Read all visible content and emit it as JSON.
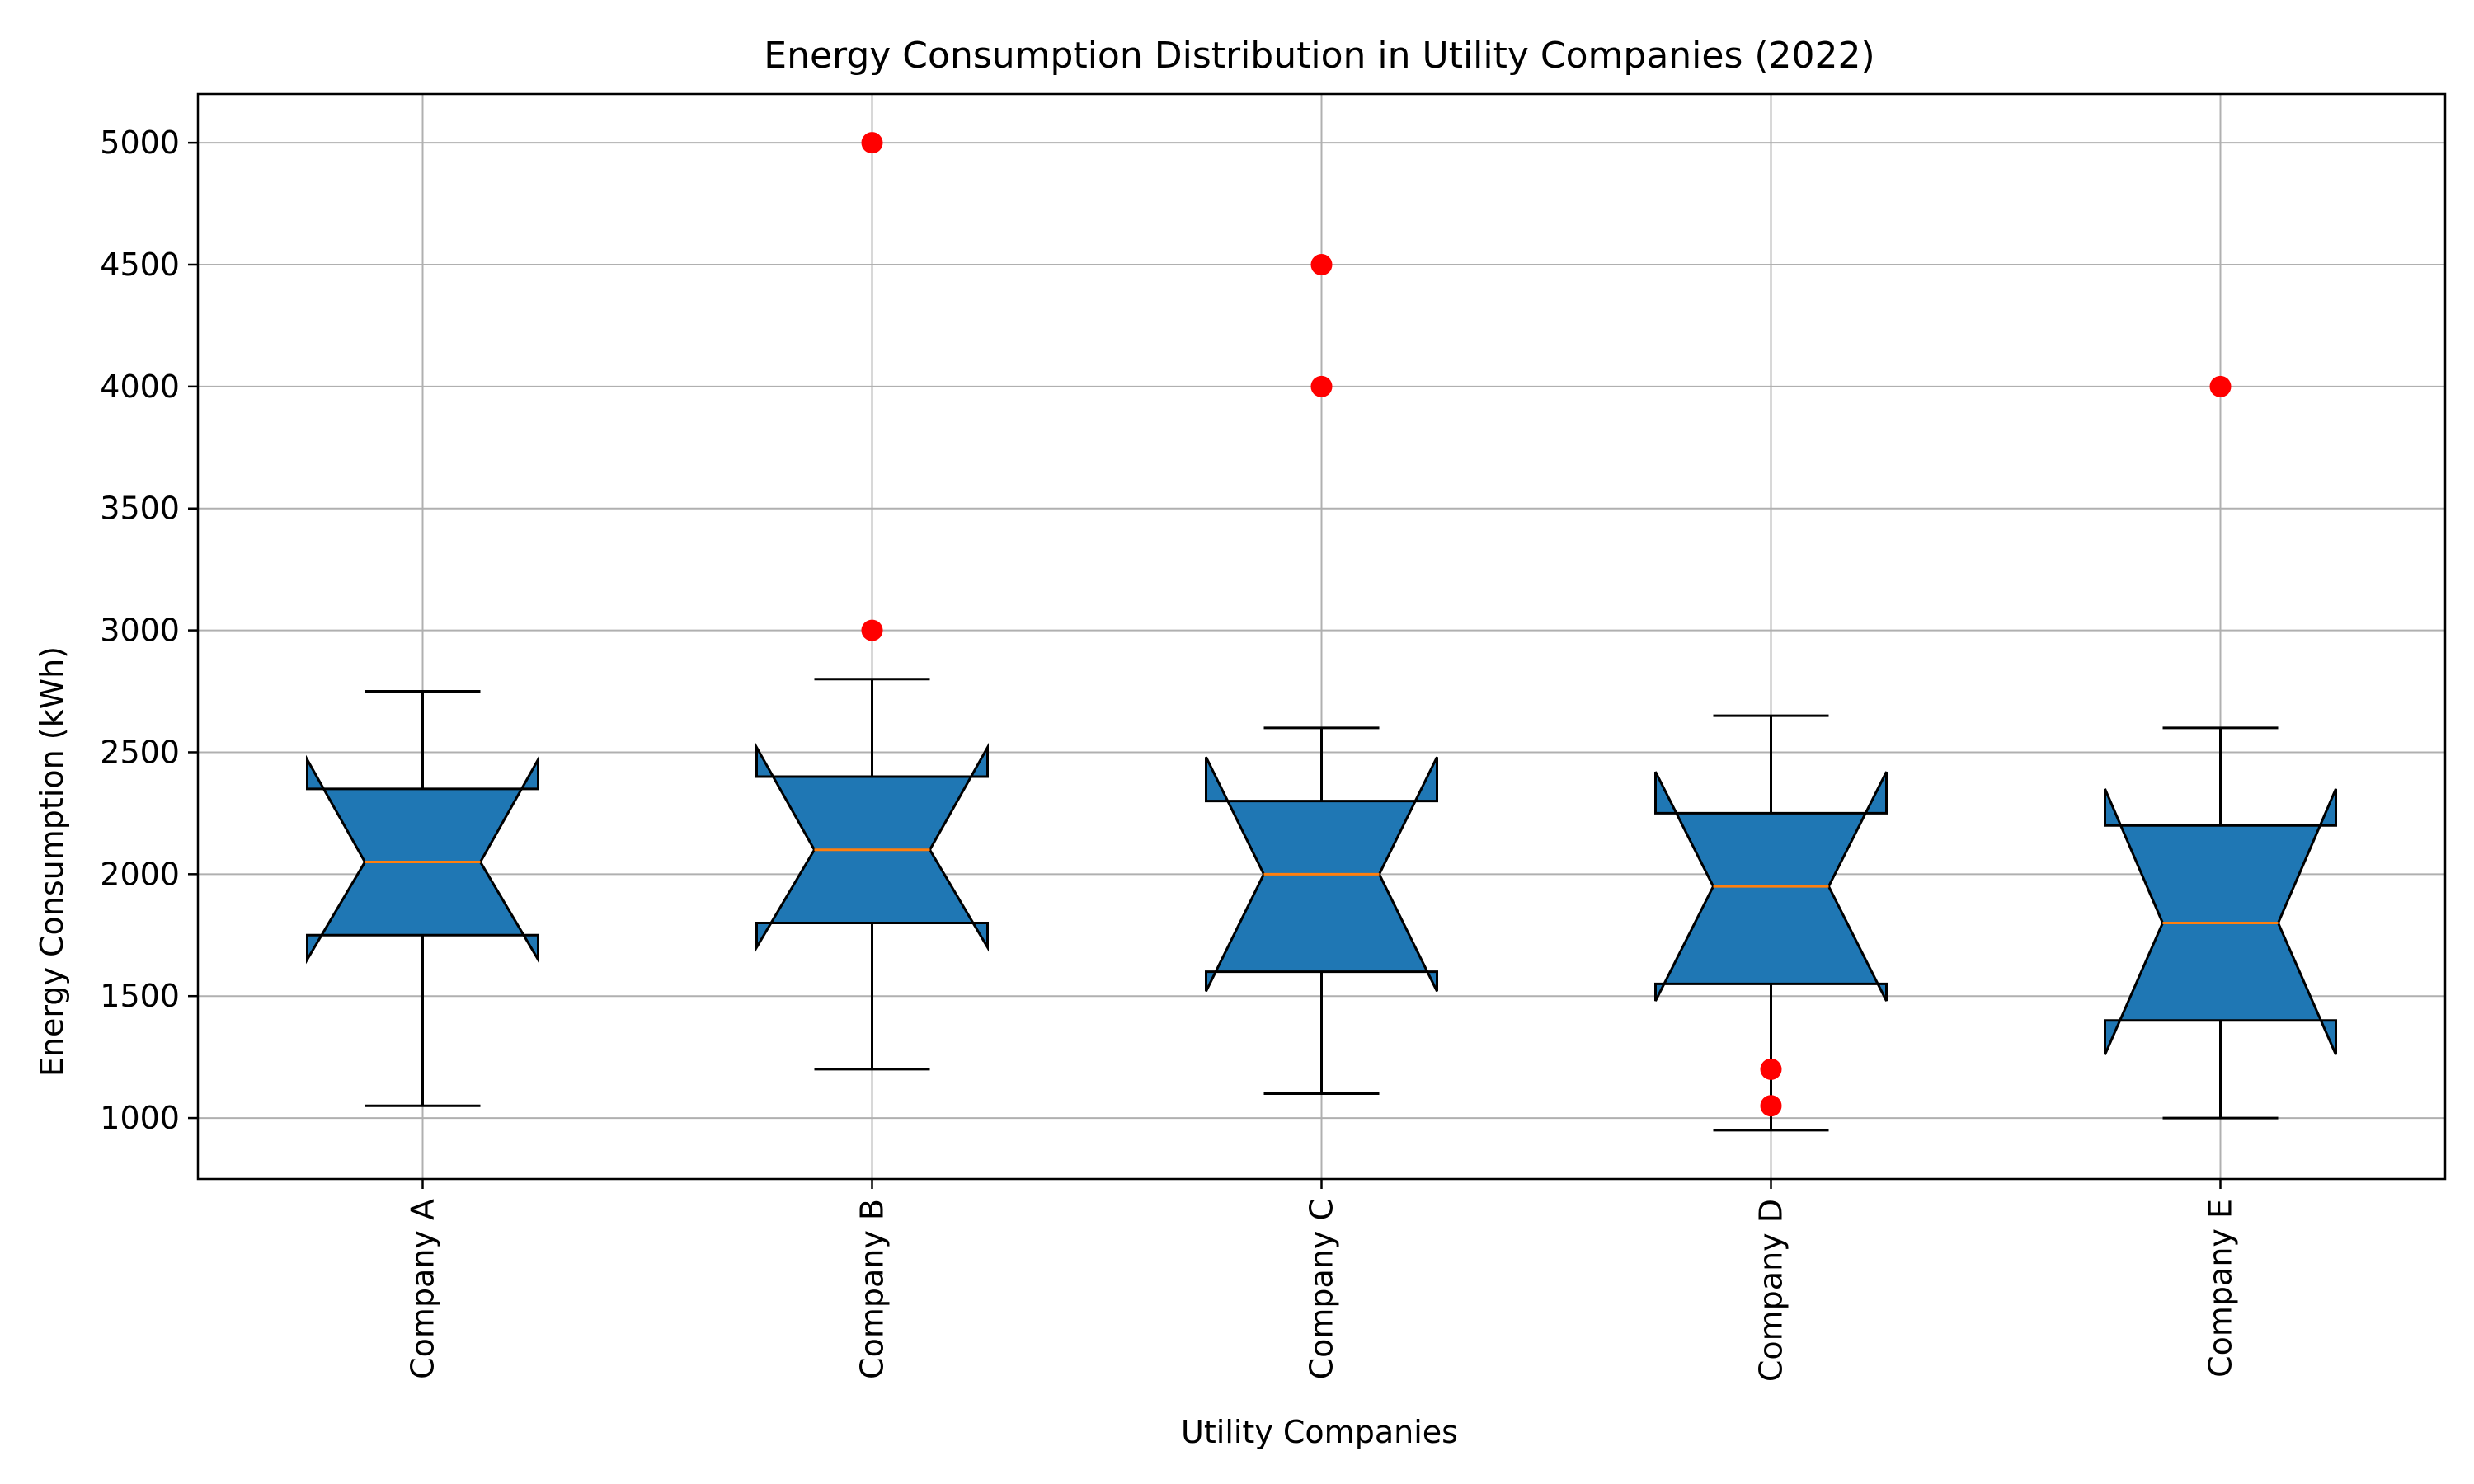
{
  "chart_data": {
    "type": "boxplot",
    "title": "Energy Consumption Distribution in Utility Companies (2022)",
    "xlabel": "Utility Companies",
    "ylabel": "Energy Consumption (kWh)",
    "ylim": [
      750,
      5200
    ],
    "yticks": [
      1000,
      1500,
      2000,
      2500,
      3000,
      3500,
      4000,
      4500,
      5000
    ],
    "grid": true,
    "notched": true,
    "categories": [
      "Company A",
      "Company B",
      "Company C",
      "Company D",
      "Company E"
    ],
    "boxes": [
      {
        "name": "Company A",
        "whisker_low": 1050,
        "q1": 1750,
        "median": 2050,
        "q3": 2350,
        "whisker_high": 2750,
        "notch_low": 1650,
        "notch_high": 2470,
        "outliers": []
      },
      {
        "name": "Company B",
        "whisker_low": 1200,
        "q1": 1800,
        "median": 2100,
        "q3": 2400,
        "whisker_high": 2800,
        "notch_low": 1700,
        "notch_high": 2520,
        "outliers": [
          3000,
          5000
        ]
      },
      {
        "name": "Company C",
        "whisker_low": 1100,
        "q1": 1600,
        "median": 2000,
        "q3": 2300,
        "whisker_high": 2600,
        "notch_low": 1520,
        "notch_high": 2480,
        "outliers": [
          4000,
          4500
        ]
      },
      {
        "name": "Company D",
        "whisker_low": 950,
        "q1": 1550,
        "median": 1950,
        "q3": 2250,
        "whisker_high": 2650,
        "notch_low": 1480,
        "notch_high": 2420,
        "outliers": [
          1050,
          1200
        ]
      },
      {
        "name": "Company E",
        "whisker_low": 1000,
        "q1": 1400,
        "median": 1800,
        "q3": 2200,
        "whisker_high": 2600,
        "notch_low": 1260,
        "notch_high": 2350,
        "outliers": [
          4000
        ]
      }
    ],
    "colors": {
      "box_fill": "#1f77b4",
      "median": "#ff7f0e",
      "outlier": "#ff0000",
      "grid": "#b0b0b0"
    }
  }
}
